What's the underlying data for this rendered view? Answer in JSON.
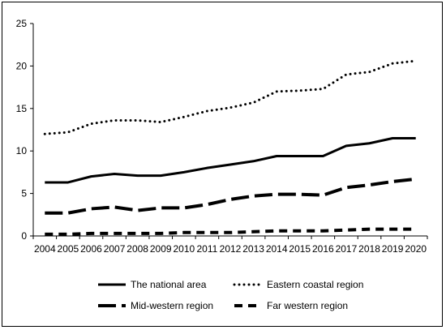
{
  "chart_data": {
    "type": "line",
    "x": [
      "2004",
      "2005",
      "2006",
      "2007",
      "2008",
      "2009",
      "2010",
      "2011",
      "2012",
      "2013",
      "2014",
      "2015",
      "2016",
      "2017",
      "2018",
      "2019",
      "2020"
    ],
    "ylim": [
      0,
      25
    ],
    "yticks": [
      "0",
      "5",
      "10",
      "15",
      "20",
      "25"
    ],
    "grid": false,
    "legend_position": "bottom",
    "series": [
      {
        "name": "The national area",
        "style": "solid",
        "color": "#000000",
        "values": [
          6.3,
          6.3,
          7.0,
          7.3,
          7.1,
          7.1,
          7.5,
          8.0,
          8.4,
          8.8,
          9.4,
          9.4,
          9.4,
          10.6,
          10.9,
          11.5,
          11.5
        ]
      },
      {
        "name": "Eastern coastal region",
        "style": "dotted",
        "color": "#000000",
        "values": [
          12.0,
          12.2,
          13.2,
          13.6,
          13.6,
          13.4,
          14.0,
          14.7,
          15.1,
          15.7,
          17.0,
          17.1,
          17.3,
          19.0,
          19.3,
          20.3,
          20.6
        ]
      },
      {
        "name": "Mid-western region",
        "style": "long-dash",
        "color": "#000000",
        "values": [
          2.7,
          2.7,
          3.2,
          3.4,
          3.0,
          3.3,
          3.3,
          3.7,
          4.3,
          4.7,
          4.9,
          4.9,
          4.8,
          5.7,
          6.0,
          6.4,
          6.7
        ]
      },
      {
        "name": "Far western region",
        "style": "dash",
        "color": "#000000",
        "values": [
          0.2,
          0.2,
          0.3,
          0.3,
          0.3,
          0.3,
          0.4,
          0.4,
          0.4,
          0.5,
          0.6,
          0.6,
          0.6,
          0.7,
          0.8,
          0.8,
          0.8
        ]
      }
    ]
  }
}
